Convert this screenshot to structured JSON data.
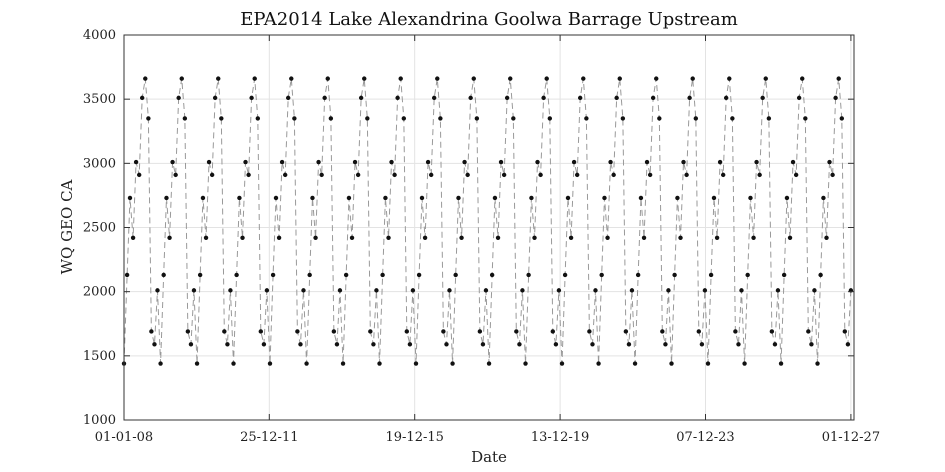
{
  "chart_data": {
    "type": "line",
    "title": "EPA2014 Lake Alexandrina Goolwa Barrage Upstream",
    "xlabel": "Date",
    "ylabel": "WQ GEO CA",
    "x_axis": {
      "scale": "date",
      "range": [
        "2008-01-01",
        "2028-01-01"
      ],
      "ticks": [
        "2008-01-01",
        "2011-12-25",
        "2015-12-19",
        "2019-12-13",
        "2023-12-07",
        "2027-12-01"
      ],
      "tick_labels": [
        "01-01-08",
        "25-12-11",
        "19-12-15",
        "13-12-19",
        "07-12-23",
        "01-12-27"
      ]
    },
    "y_axis": {
      "range": [
        1000,
        4000
      ],
      "ticks": [
        1000,
        1500,
        2000,
        2500,
        3000,
        3500,
        4000
      ],
      "tick_labels": [
        "1000",
        "1500",
        "2000",
        "2500",
        "3000",
        "3500",
        "4000"
      ]
    },
    "grid": true,
    "legend": "none",
    "series": [
      {
        "style": "dashed-line-with-dot-markers",
        "line_color": "#999999",
        "marker_color": "#111111",
        "annual_pattern": {
          "month_of_year": [
            1,
            2,
            3,
            4,
            5,
            6,
            7,
            8,
            9,
            10,
            11,
            12
          ],
          "values": [
            1440,
            2130,
            2730,
            2420,
            3010,
            2910,
            3510,
            3660,
            3350,
            1690,
            1590,
            2010
          ]
        },
        "period": {
          "start": "2008-01",
          "end": "2027-12"
        }
      }
    ]
  }
}
